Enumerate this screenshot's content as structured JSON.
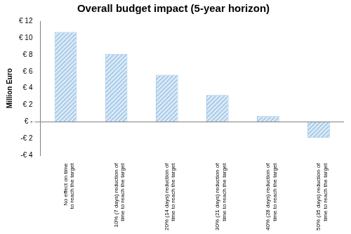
{
  "chart_data": {
    "type": "bar",
    "title": "Overall budget impact (5-year horizon)",
    "y_label": "Million Euro",
    "categories": [
      "No effect on time to reach the target",
      "10% (7 days) reduction of time to reach the target",
      "20% (14 days) reduction of time to reach the target",
      "30% (21 days) reduction of time to reach the target",
      "40% (28 days) reduction of time to reach the target",
      "50% (35 days) reduction of time to reach the target"
    ],
    "values": [
      10.7,
      8.1,
      5.6,
      3.2,
      0.7,
      -1.9
    ],
    "color": "#9dc3e6",
    "ylim": [
      -4,
      12
    ],
    "yticks": [
      {
        "value": -4,
        "label": "-€ 4"
      },
      {
        "value": -2,
        "label": "-€ 2"
      },
      {
        "value": 0,
        "label": "€ -"
      },
      {
        "value": 2,
        "label": "€ 2"
      },
      {
        "value": 4,
        "label": "€ 4"
      },
      {
        "value": 6,
        "label": "€ 6"
      },
      {
        "value": 8,
        "label": "€ 8"
      },
      {
        "value": 10,
        "label": "€ 10"
      },
      {
        "value": 12,
        "label": "€ 12"
      }
    ],
    "grid": false
  }
}
